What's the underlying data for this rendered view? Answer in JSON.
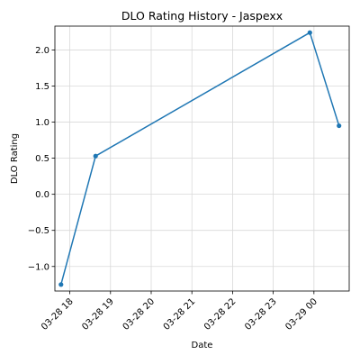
{
  "chart_data": {
    "type": "line",
    "title": "DLO Rating History - Jaspexx",
    "xlabel": "Date",
    "ylabel": "DLO Rating",
    "x_ticks": [
      "03-28 18",
      "03-28 19",
      "03-28 20",
      "03-28 21",
      "03-28 22",
      "03-28 23",
      "03-29 00"
    ],
    "y_ticks": [
      "−1.0",
      "−0.5",
      "0.0",
      "0.5",
      "1.0",
      "1.5",
      "2.0"
    ],
    "x_range": [
      "03-28 17:38",
      "03-29 00:52"
    ],
    "ylim": [
      -1.34,
      2.33
    ],
    "grid": true,
    "legend": "none",
    "series": [
      {
        "color": "#1f77b4",
        "marker": "circle",
        "points": [
          {
            "x": "03-28 17:47",
            "y": -1.25
          },
          {
            "x": "03-28 18:38",
            "y": 0.53
          },
          {
            "x": "03-28 23:54",
            "y": 2.24
          },
          {
            "x": "03-29 00:37",
            "y": 0.95
          }
        ]
      }
    ]
  }
}
